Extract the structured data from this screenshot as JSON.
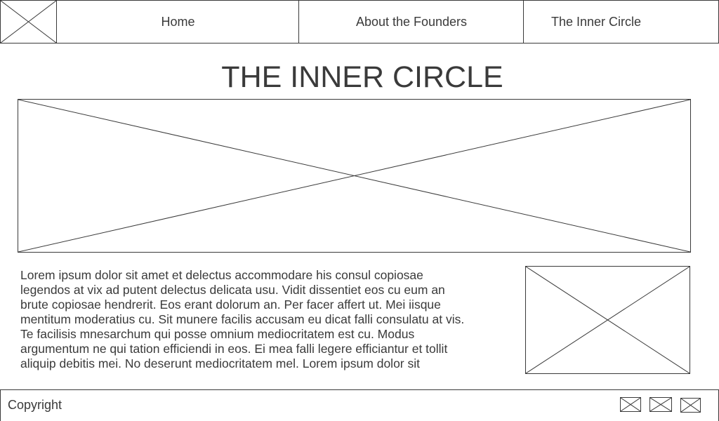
{
  "nav": {
    "logo_icon": "image-placeholder-icon",
    "items": [
      {
        "label": "Home"
      },
      {
        "label": "About the Founders"
      },
      {
        "label": "The Inner Circle"
      }
    ]
  },
  "main": {
    "title": "THE INNER CIRCLE",
    "hero_icon": "image-placeholder-icon",
    "body_text": "Lorem ipsum dolor sit amet et delectus accommodare his consul copiosae legendos at vix ad putent delectus delicata usu. Vidit dissentiet eos cu eum an brute copiosae hendrerit. Eos erant dolorum an. Per facer affert ut. Mei iisque mentitum moderatius cu. Sit munere facilis accusam eu dicat falli consulatu at vis. Te facilisis mnesarchum qui posse omnium mediocritatem est cu. Modus argumentum ne qui tation efficiendi in eos. Ei mea falli legere efficiantur et tollit aliquip debitis mei. No deserunt mediocritatem mel. Lorem ipsum dolor sit",
    "side_icon": "image-placeholder-icon"
  },
  "footer": {
    "copyright": "Copyright",
    "icons": [
      "image-placeholder-icon",
      "image-placeholder-icon",
      "image-placeholder-icon"
    ]
  },
  "colors": {
    "stroke": "#3a3a3a",
    "background": "#ffffff"
  }
}
